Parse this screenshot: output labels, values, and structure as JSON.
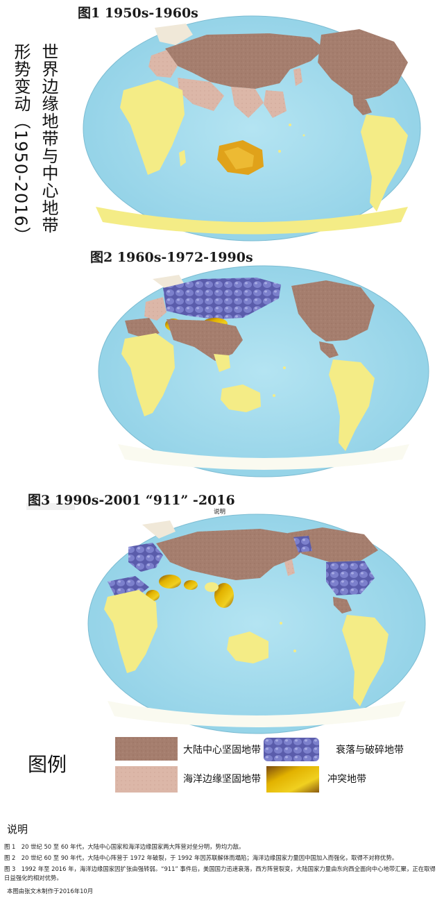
{
  "vertical_title": {
    "line1": "世界边缘地带与中心地带",
    "line2": "形势变动（1950-2016）"
  },
  "figures": [
    {
      "title": "图1  1950s-1960s"
    },
    {
      "title": "图2   1960s-1972-1990s"
    },
    {
      "title": "图3   1990s-2001 “911” -2016"
    }
  ],
  "small_caption": "说明",
  "legend": {
    "heading": "图例",
    "items": [
      {
        "label": "大陆中心坚固地带",
        "color": "#a98272"
      },
      {
        "label": "衰落与破碎地带",
        "color": "#5c5fae"
      },
      {
        "label": "海洋边缘坚固地带",
        "color": "#dcb6a6"
      },
      {
        "label": "冲突地带",
        "color": "#d9a400"
      }
    ]
  },
  "notes": {
    "title": "说明",
    "items": [
      "图 1　20 世纪 50 至 60 年代，大陆中心国家和海洋边缘国家两大阵营对垒分明，势均力敌。",
      "图 2　20 世纪 60 至 90 年代，大陆中心阵营于 1972 年破裂，于 1992 年因苏联解体而塌陷；海洋边缘国家力量因中国加入而强化，取得不对称优势。",
      "图 3　1992 年至 2016 年，海洋边缘国家因扩张由强转弱。“911” 事件后，美国国力迅速衰落，西方阵营裂变，大陆国家力量由东向西全面向中心地带汇聚，正在取得日益强化的相对优势。"
    ],
    "credit": "本图由张文木制作于2016年10月"
  },
  "colors": {
    "ocean": "#a7dcec",
    "land_yellow": "#f4ec86",
    "continental": "#a98272",
    "maritime": "#dcb6a6",
    "decline": "#5c5fae",
    "conflict": "#d9a400"
  }
}
